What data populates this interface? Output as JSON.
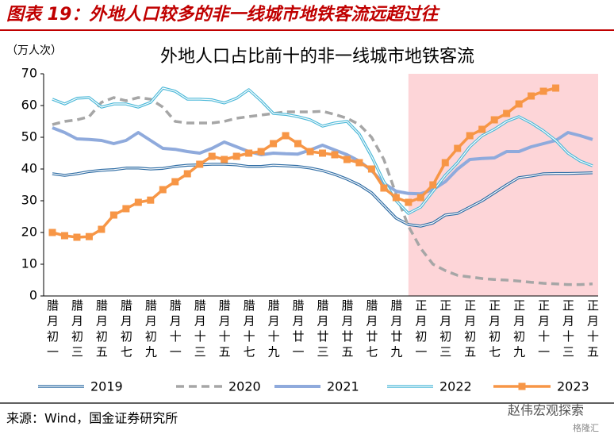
{
  "header": {
    "title": "图表 19：外地人口较多的非一线城市地铁客流远超过往"
  },
  "chart_data": {
    "type": "line",
    "title": "外地人口占比前十的非一线城市地铁客流",
    "y_label": "（万人次）",
    "categories": [
      "腊月初一",
      null,
      "腊月初三",
      null,
      "腊月初五",
      null,
      "腊月初七",
      null,
      "腊月初九",
      null,
      "腊月十一",
      null,
      "腊月十三",
      null,
      "腊月十五",
      null,
      "腊月十七",
      null,
      "腊月十九",
      null,
      "腊月廿一",
      null,
      "腊月廿三",
      null,
      "腊月廿五",
      null,
      "腊月廿七",
      null,
      "腊月廿九",
      null,
      "正月初一",
      null,
      "正月初三",
      null,
      "正月初五",
      null,
      "正月初七",
      null,
      "正月初九",
      null,
      "正月十一",
      null,
      "正月十三",
      null,
      "正月十五"
    ],
    "ylim": [
      0,
      70
    ],
    "yticks": [
      0,
      10,
      20,
      30,
      40,
      50,
      60,
      70
    ],
    "series": [
      {
        "name": "2019",
        "color": "#2e6ca4",
        "style": "double",
        "values": [
          38.5,
          38,
          38.5,
          39.2,
          39.6,
          39.8,
          40.3,
          40.3,
          40,
          40.2,
          40.8,
          41.2,
          41.3,
          41.5,
          41.5,
          41.3,
          40.8,
          40.8,
          41.2,
          41,
          40.8,
          40.3,
          39.5,
          38.3,
          36.8,
          35,
          32.5,
          28.5,
          24.5,
          22.5,
          22,
          23,
          25.5,
          26,
          28,
          30,
          32.5,
          35,
          37.3,
          37.8,
          38.5,
          38.6,
          38.6,
          38.7,
          38.8
        ]
      },
      {
        "name": "2020",
        "color": "#a6a6a6",
        "style": "dashed",
        "values": [
          54,
          55,
          55.5,
          56.5,
          61,
          62.5,
          61.5,
          62.5,
          62,
          59.5,
          55,
          54.5,
          54.5,
          54.5,
          55,
          56,
          56.5,
          57,
          57.5,
          58,
          58,
          58,
          58.2,
          57.2,
          56,
          54,
          50,
          43,
          32,
          22,
          15,
          10,
          8,
          6.5,
          6,
          5.5,
          5.2,
          5,
          4.7,
          4.3,
          4,
          3.8,
          3.6,
          3.6,
          3.8
        ]
      },
      {
        "name": "2021",
        "color": "#8faadc",
        "style": "thick",
        "values": [
          53,
          51.5,
          49.5,
          49.3,
          49,
          48,
          49,
          51.5,
          49,
          46.5,
          46.2,
          45.5,
          45,
          46.5,
          48.5,
          47,
          45.5,
          44.5,
          45,
          44.8,
          44.7,
          46,
          47.5,
          46,
          44.5,
          42.5,
          39.5,
          35.5,
          33,
          32.3,
          32.2,
          33.5,
          36,
          40,
          43,
          43.3,
          43.5,
          45.5,
          45.5,
          47,
          48,
          49,
          51.5,
          50.5,
          49.3
        ]
      },
      {
        "name": "2022",
        "color": "#4bb8d8",
        "style": "double",
        "values": [
          62,
          60.5,
          62.3,
          62.5,
          59.5,
          60.5,
          60.5,
          59.5,
          61,
          65.5,
          64.5,
          62,
          62,
          61.8,
          60.8,
          62.3,
          65,
          61.5,
          57.5,
          57.2,
          56.5,
          55.5,
          53.5,
          54.5,
          55,
          51,
          44,
          36,
          30,
          26,
          28,
          33,
          38,
          42,
          47,
          50.5,
          52.5,
          55,
          56.5,
          54.5,
          52,
          49,
          45,
          42.5,
          41
        ]
      },
      {
        "name": "2023",
        "color": "#f79646",
        "style": "marker",
        "values": [
          20,
          19,
          18.5,
          18.7,
          21,
          25.5,
          27.5,
          29.5,
          30.2,
          33.5,
          36,
          38.5,
          41.5,
          44,
          43,
          44,
          45,
          45.5,
          48,
          50.5,
          48,
          45.5,
          45,
          44.5,
          43,
          42,
          40,
          34,
          31,
          29.5,
          31,
          35,
          42,
          46.5,
          50.5,
          52.5,
          55.5,
          57.5,
          60.5,
          63,
          64.5,
          65.5,
          null,
          null,
          null
        ]
      }
    ]
  },
  "footer": {
    "source": "来源：Wind，国金证券研究所",
    "watermark": "赵伟宏观探索",
    "brand": "格隆汇"
  }
}
